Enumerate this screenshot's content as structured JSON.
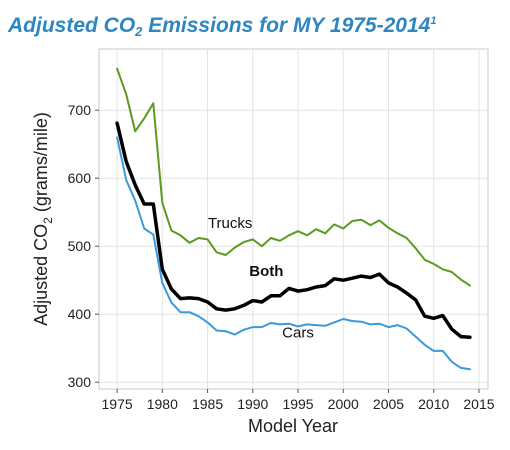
{
  "chart_data": {
    "type": "line",
    "title": {
      "main_before": "Adjusted CO",
      "main_sub": "2",
      "main_after": " Emissions for MY 1975-2014",
      "footnote": "1"
    },
    "xlabel": "Model Year",
    "ylabel": {
      "before": "Adjusted CO",
      "sub": "2",
      "after": " (grams/mile)"
    },
    "xlim": [
      1973,
      2016
    ],
    "ylim": [
      290,
      790
    ],
    "xticks": [
      1975,
      1980,
      1985,
      1990,
      1995,
      2000,
      2005,
      2010,
      2015
    ],
    "yticks": [
      300,
      400,
      500,
      600,
      700
    ],
    "grid": true,
    "x": [
      1975,
      1976,
      1977,
      1978,
      1979,
      1980,
      1981,
      1982,
      1983,
      1984,
      1985,
      1986,
      1987,
      1988,
      1989,
      1990,
      1991,
      1992,
      1993,
      1994,
      1995,
      1996,
      1997,
      1998,
      1999,
      2000,
      2001,
      2002,
      2003,
      2004,
      2005,
      2006,
      2007,
      2008,
      2009,
      2010,
      2011,
      2012,
      2013,
      2014
    ],
    "series": [
      {
        "name": "Trucks",
        "color": "#5a9a1e",
        "width": 2,
        "label_bold": false,
        "label_x": 1987.5,
        "label_y": 527,
        "values": [
          761,
          724,
          669,
          688,
          710,
          564,
          523,
          516,
          505,
          512,
          510,
          491,
          487,
          498,
          506,
          510,
          500,
          512,
          508,
          516,
          522,
          516,
          525,
          519,
          532,
          526,
          537,
          539,
          531,
          538,
          527,
          519,
          512,
          497,
          480,
          474,
          466,
          462,
          451,
          442
        ]
      },
      {
        "name": "Both",
        "color": "#000000",
        "width": 3.5,
        "label_bold": true,
        "label_x": 1991.5,
        "label_y": 456,
        "values": [
          681,
          625,
          590,
          562,
          562,
          466,
          437,
          423,
          424,
          423,
          418,
          408,
          406,
          408,
          413,
          420,
          418,
          427,
          427,
          438,
          434,
          436,
          440,
          442,
          452,
          450,
          453,
          456,
          454,
          459,
          446,
          440,
          431,
          421,
          397,
          394,
          398,
          378,
          367,
          366
        ]
      },
      {
        "name": "Cars",
        "color": "#3a9ad9",
        "width": 2,
        "label_bold": false,
        "label_x": 1995,
        "label_y": 366,
        "values": [
          660,
          598,
          567,
          526,
          517,
          446,
          417,
          403,
          403,
          397,
          388,
          376,
          375,
          370,
          377,
          381,
          381,
          387,
          385,
          386,
          382,
          385,
          384,
          383,
          388,
          393,
          390,
          389,
          385,
          386,
          381,
          384,
          379,
          367,
          355,
          346,
          346,
          330,
          321,
          319
        ]
      }
    ]
  }
}
